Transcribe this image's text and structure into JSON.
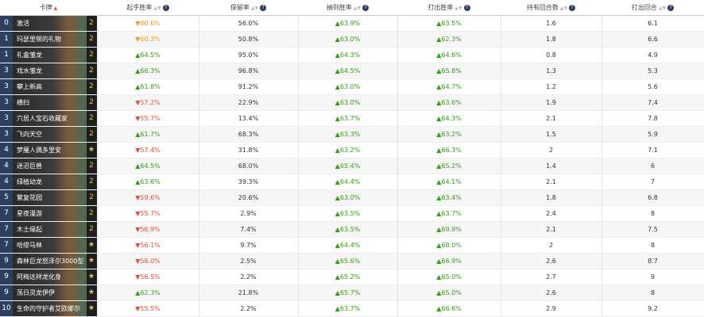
{
  "header": {
    "columns": [
      "卡牌",
      "起手胜率",
      "保留率",
      "抽到胜率",
      "打出胜率",
      "持有回合数",
      "打出回合"
    ]
  },
  "table": {
    "rows": [
      [
        "0",
        "激活",
        "2",
        "▼60.6%",
        "56.0%",
        "▲63.9%",
        "▲63.5%",
        "1.6",
        "6.1"
      ],
      [
        "1",
        "玛瑟里顿的礼物",
        "2",
        "▼60.3%",
        "50.8%",
        "▲63.0%",
        "▲62.3%",
        "1.8",
        "6.6"
      ],
      [
        "1",
        "礼盒雏龙",
        "2",
        "▲64.5%",
        "95.0%",
        "▲64.3%",
        "▲64.6%",
        "0.8",
        "4.9"
      ],
      [
        "3",
        "戏水雏龙",
        "2",
        "▲66.3%",
        "96.8%",
        "▲64.5%",
        "▲65.8%",
        "1.3",
        "5.3"
      ],
      [
        "3",
        "攀上新高",
        "2",
        "▲61.8%",
        "91.2%",
        "▲63.0%",
        "▲64.7%",
        "1.2",
        "5.6"
      ],
      [
        "3",
        "横扫",
        "2",
        "▼57.2%",
        "22.9%",
        "▲63.0%",
        "▲63.6%",
        "1.9",
        "7.4"
      ],
      [
        "3",
        "穴居人宝石收藏家",
        "2",
        "▼55.7%",
        "13.4%",
        "▲63.7%",
        "▲64.3%",
        "2.1",
        "7.8"
      ],
      [
        "3",
        "飞向天空",
        "2",
        "▲61.7%",
        "68.3%",
        "▲63.3%",
        "▲63.2%",
        "1.5",
        "5.9"
      ],
      [
        "4",
        "梦魇人偶多里安",
        "★",
        "▼57.4%",
        "31.8%",
        "▲63.2%",
        "▲66.3%",
        "2",
        "7.1"
      ],
      [
        "4",
        "迷沼巨兽",
        "2",
        "▲64.5%",
        "68.0%",
        "▲65.4%",
        "▲65.2%",
        "1.4",
        "6"
      ],
      [
        "4",
        "绿植幼龙",
        "2",
        "▲63.6%",
        "39.3%",
        "▲64.4%",
        "▲64.1%",
        "2.1",
        "7"
      ],
      [
        "5",
        "繁复花园",
        "2",
        "▼59.6%",
        "20.6%",
        "▲63.0%",
        "▲63.4%",
        "1.8",
        "6.8"
      ],
      [
        "7",
        "星夜漫游",
        "2",
        "▼55.7%",
        "2.9%",
        "▲63.5%",
        "▲63.7%",
        "2.4",
        "8"
      ],
      [
        "7",
        "木土缘起",
        "2",
        "▼56.9%",
        "7.4%",
        "▲63.5%",
        "▲69.9%",
        "2.1",
        "7.5"
      ],
      [
        "7",
        "哈缪马林",
        "★",
        "▼56.1%",
        "9.7%",
        "▲64.4%",
        "▲68.0%",
        "2",
        "8"
      ],
      [
        "9",
        "森林巨龙怒泽尔3000型",
        "★",
        "▼56.0%",
        "2.5%",
        "▲65.6%",
        "▲66.9%",
        "2.6",
        "8.7"
      ],
      [
        "9",
        "阿梅达祥龙化身",
        "★",
        "▼56.5%",
        "2.2%",
        "▲65.2%",
        "▲65.0%",
        "2.7",
        "9"
      ],
      [
        "9",
        "荡日灵龙伊伊",
        "★",
        "▲62.3%",
        "21.8%",
        "▲65.7%",
        "▲65.0%",
        "2.6",
        "8"
      ],
      [
        "10",
        "生命的守护者艾欧娜尔",
        "★",
        "▼55.5%",
        "2.2%",
        "▲63.7%",
        "▲66.6%",
        "2.9",
        "9.2"
      ]
    ],
    "mulligan_colors": [
      "#e8a020",
      "#e8a020",
      "#3a9a1e",
      "#3a9a1e",
      "#3a9a1e",
      "#e0503a",
      "#e0503a",
      "#3a9a1e",
      "#e0503a",
      "#3a9a1e",
      "#3a9a1e",
      "#e0503a",
      "#e0503a",
      "#e0503a",
      "#e0503a",
      "#e0503a",
      "#e0503a",
      "#3a9a1e",
      "#e0503a"
    ]
  }
}
